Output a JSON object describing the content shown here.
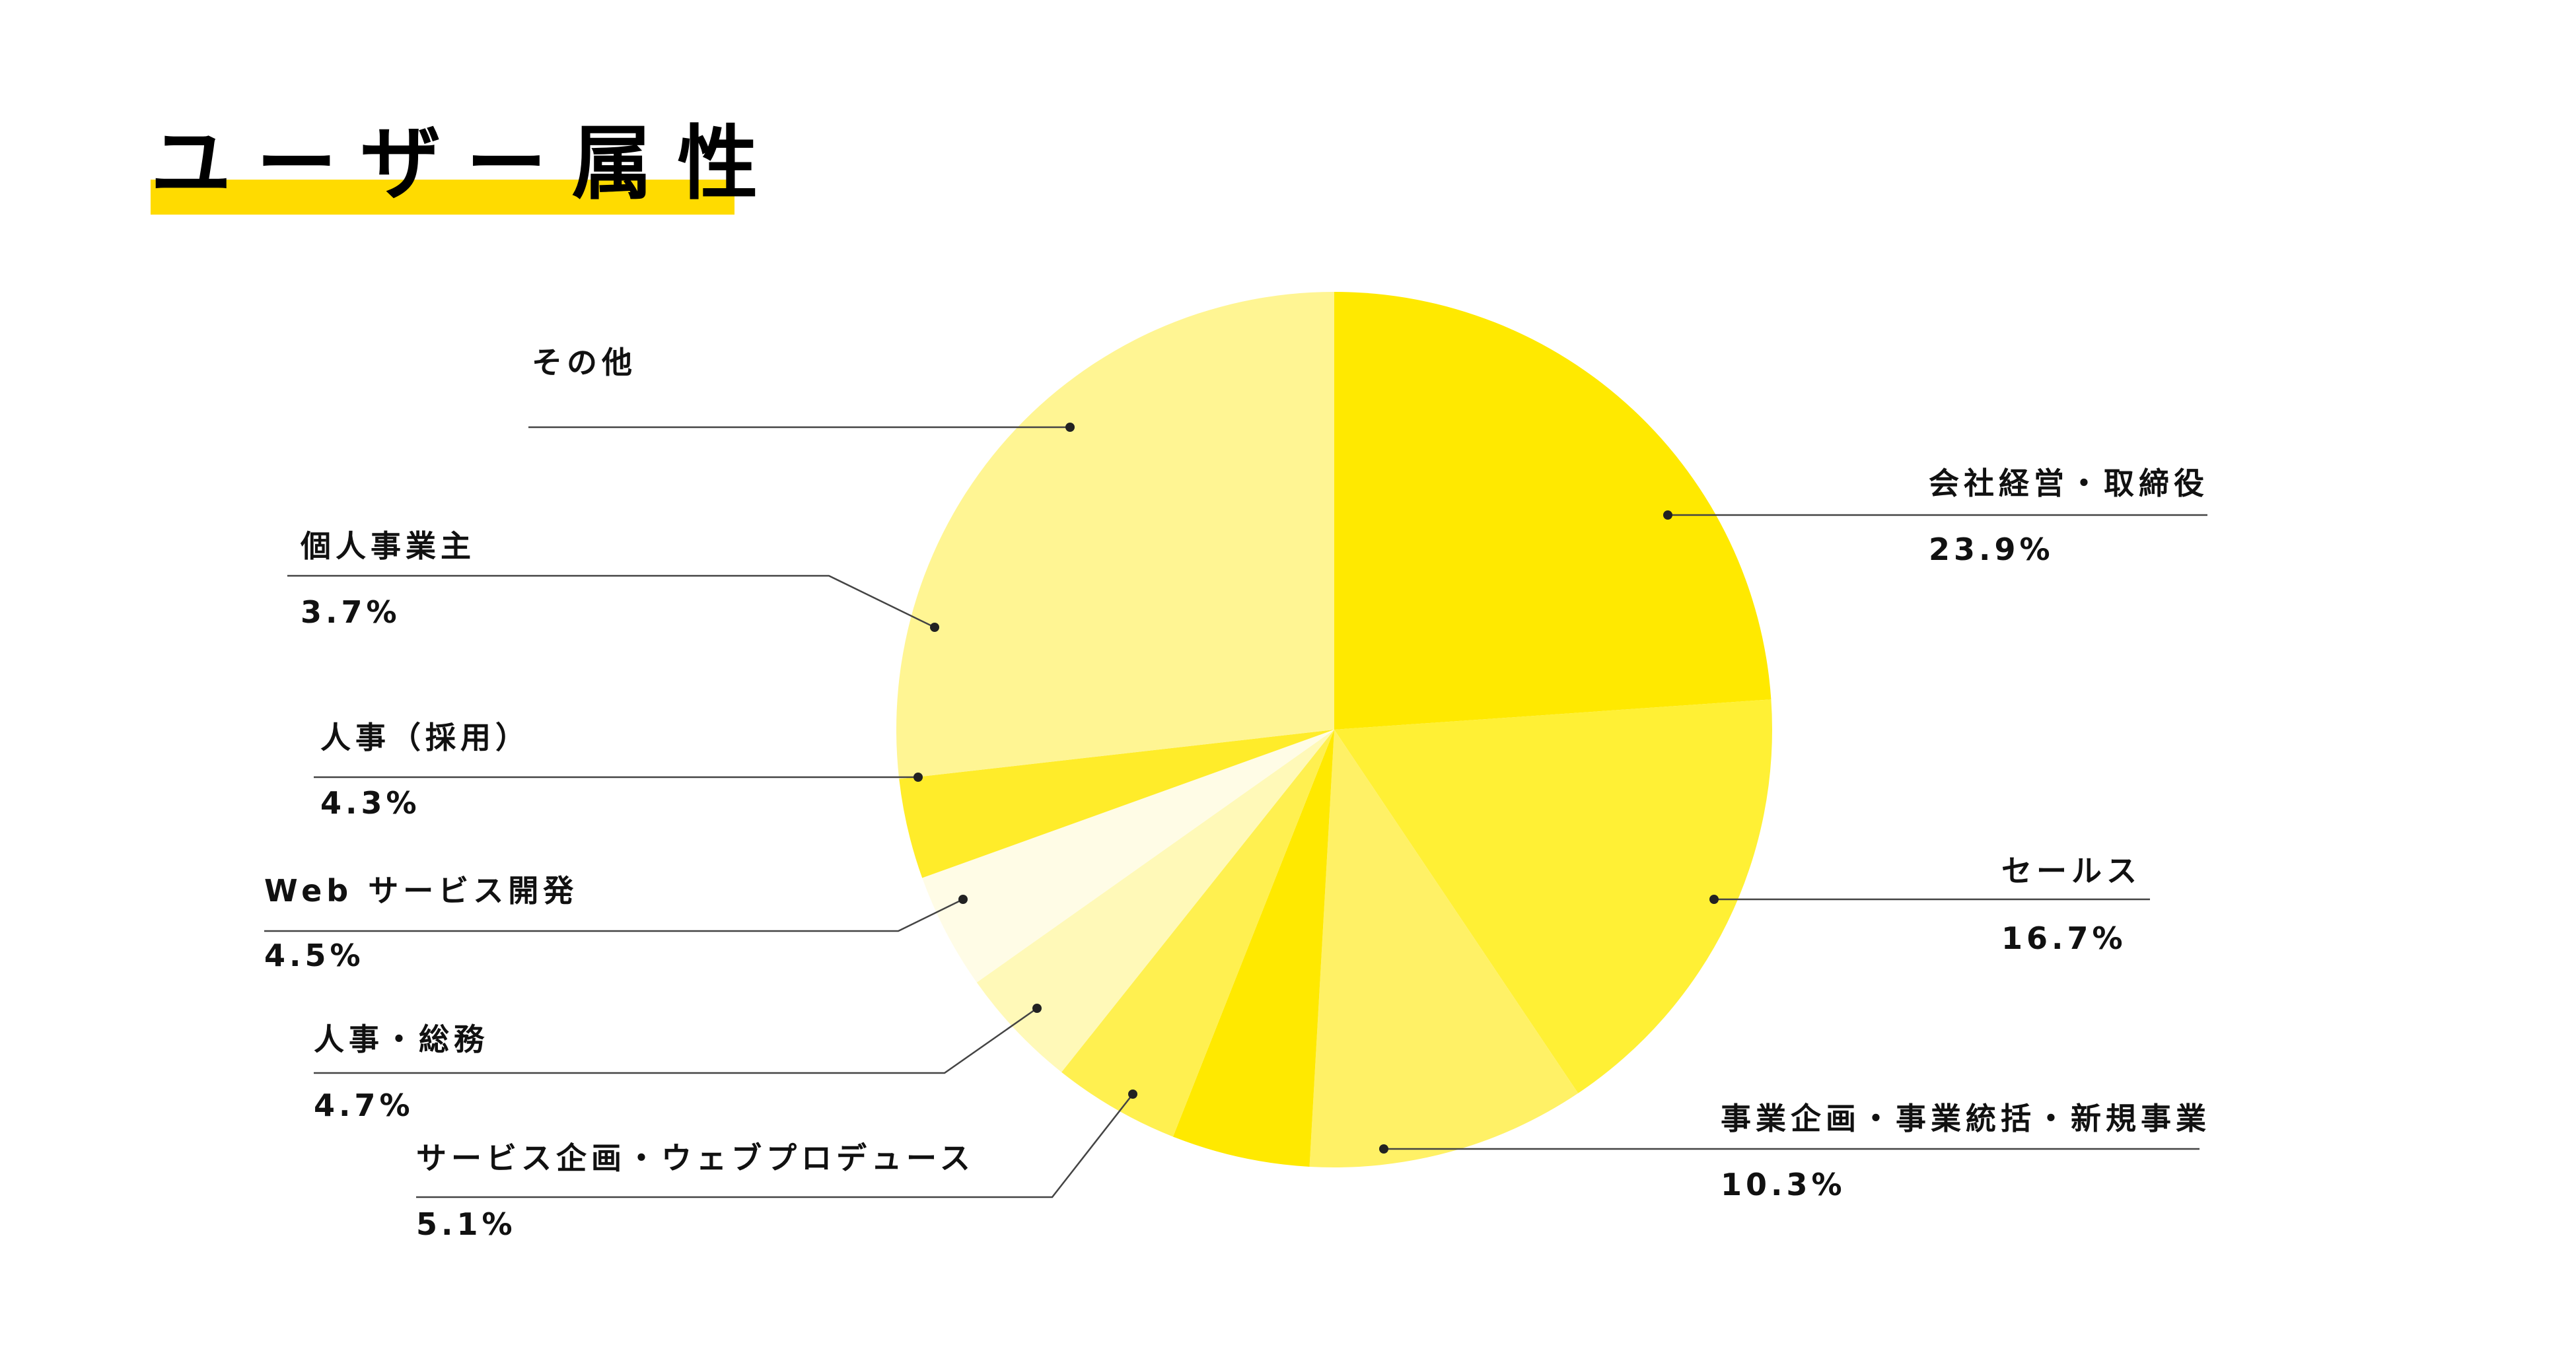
{
  "header": {
    "title": "ユーザー属性",
    "accent_color": "#FFDB00"
  },
  "chart_data": {
    "type": "pie",
    "title": "ユーザー属性",
    "start": "top",
    "direction": "clockwise",
    "slices": [
      {
        "label": "会社経営・取締役",
        "value": 23.9,
        "value_label": "23.9%",
        "color": "#FFE900"
      },
      {
        "label": "セールス",
        "value": 16.7,
        "value_label": "16.7%",
        "color": "#FFF035"
      },
      {
        "label": "事業企画・事業統括・新規事業",
        "value": 10.3,
        "value_label": "10.3%",
        "color": "#FFF166"
      },
      {
        "label": "サービス企画・ウェブプロデュース",
        "value": 5.1,
        "value_label": "5.1%",
        "color": "#FFE900"
      },
      {
        "label": "人事・総務",
        "value": 4.7,
        "value_label": "4.7%",
        "color": "#FFF050"
      },
      {
        "label": "Web サービス開発",
        "value": 4.5,
        "value_label": "4.5%",
        "color": "#FFF9B8"
      },
      {
        "label": "人事（採用）",
        "value": 4.3,
        "value_label": "4.3%",
        "color": "#FFFCE6"
      },
      {
        "label": "個人事業主",
        "value": 3.7,
        "value_label": "3.7%",
        "color": "#FFEC2A"
      },
      {
        "label": "その他",
        "value": null,
        "color": "#FFF593"
      }
    ]
  }
}
